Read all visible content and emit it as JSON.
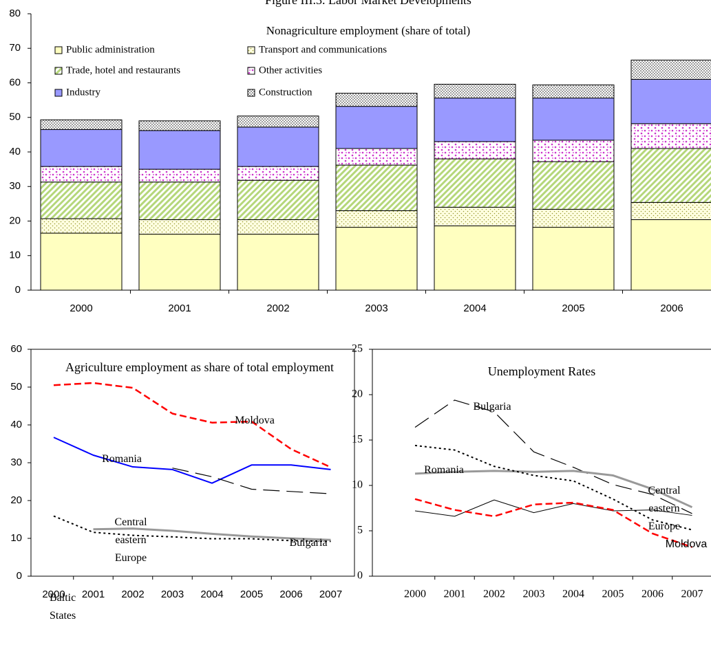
{
  "chart_data": [
    {
      "type": "bar",
      "title": "Figure III.3. Labor Market Developments",
      "subtitle": "Nonagriculture employment (share of total)",
      "categories": [
        "2000",
        "2001",
        "2002",
        "2003",
        "2004",
        "2005",
        "2006"
      ],
      "ylim": [
        0,
        80
      ],
      "yticks": [
        0,
        10,
        20,
        30,
        40,
        50,
        60,
        70,
        80
      ],
      "stacked": true,
      "series": [
        {
          "name": "Public administration",
          "color": "#ffffc0",
          "values": [
            16.5,
            16.2,
            16.2,
            18.2,
            18.6,
            18.2,
            20.4
          ]
        },
        {
          "name": "Transport and communications",
          "color": "#ffffe0",
          "pattern": "dots-olive",
          "values": [
            4.2,
            4.2,
            4.2,
            4.8,
            5.4,
            5.2,
            5.0
          ]
        },
        {
          "name": "Trade, hotel and restaurants",
          "color": "#b5d77a",
          "pattern": "hatch-green",
          "values": [
            10.6,
            10.9,
            11.4,
            13.2,
            14.0,
            13.8,
            15.6
          ]
        },
        {
          "name": "Other activities",
          "color": "#cc33cc",
          "pattern": "dots-magenta",
          "values": [
            4.5,
            3.7,
            4.0,
            4.8,
            5.0,
            6.2,
            7.2
          ]
        },
        {
          "name": "Industry",
          "color": "#9999ff",
          "values": [
            10.7,
            11.2,
            11.4,
            12.2,
            12.6,
            12.2,
            12.8
          ]
        },
        {
          "name": "Construction",
          "color": "#808080",
          "pattern": "dots-dense",
          "values": [
            2.8,
            2.8,
            3.2,
            3.8,
            4.0,
            3.8,
            5.6
          ]
        }
      ]
    },
    {
      "type": "line",
      "title": "Agriculture employment as share of total employment",
      "categories": [
        "2000",
        "2001",
        "2002",
        "2003",
        "2004",
        "2005",
        "2006",
        "2007"
      ],
      "ylim": [
        0,
        60
      ],
      "yticks": [
        0,
        10,
        20,
        30,
        40,
        50,
        60
      ],
      "series": [
        {
          "name": "Moldova",
          "color": "#ff0000",
          "line_style": "dashed",
          "linewidth": 2.5,
          "values": [
            50.5,
            51.1,
            49.8,
            43.0,
            40.6,
            40.9,
            33.6,
            28.8
          ]
        },
        {
          "name": "Romania",
          "color": "#0000ff",
          "line_style": "solid",
          "linewidth": 2,
          "values": [
            36.7,
            32.0,
            28.9,
            28.2,
            24.6,
            29.4,
            29.4,
            28.2
          ]
        },
        {
          "name": "Bulgaria",
          "color": "#000000",
          "line_style": "long-dashed",
          "linewidth": 1.2,
          "values": [
            null,
            null,
            null,
            28.6,
            26.3,
            23.0,
            22.4,
            21.8
          ]
        },
        {
          "name": "Central eastern Europe",
          "color": "#999999",
          "line_style": "solid",
          "linewidth": 3,
          "values": [
            null,
            12.4,
            12.6,
            12.0,
            11.2,
            10.5,
            10.0,
            9.6
          ]
        },
        {
          "name": "Baltic States",
          "color": "#000000",
          "line_style": "dotted",
          "linewidth": 2,
          "values": [
            15.9,
            11.6,
            10.8,
            10.4,
            9.9,
            9.9,
            9.4,
            9.2
          ]
        }
      ]
    },
    {
      "type": "line",
      "title": "Unemployment Rates",
      "categories": [
        "2000",
        "2001",
        "2002",
        "2003",
        "2004",
        "2005",
        "2006",
        "2007"
      ],
      "ylim": [
        0,
        25
      ],
      "yticks": [
        0,
        5,
        10,
        15,
        20,
        25
      ],
      "series": [
        {
          "name": "Bulgaria",
          "color": "#000000",
          "line_style": "long-dashed",
          "linewidth": 1.2,
          "values": [
            16.4,
            19.4,
            18.1,
            13.7,
            12.0,
            10.1,
            9.0,
            6.9
          ]
        },
        {
          "name": "Central eastern Europe",
          "color": "#999999",
          "line_style": "solid",
          "linewidth": 3,
          "values": [
            11.3,
            11.5,
            11.6,
            11.5,
            11.6,
            11.1,
            9.6,
            7.6
          ]
        },
        {
          "color": "#000000",
          "line_style": "dotted",
          "linewidth": 2,
          "values": [
            14.4,
            13.9,
            12.1,
            11.1,
            10.5,
            8.5,
            6.2,
            5.1
          ]
        },
        {
          "name": "Romania",
          "color": "#000000",
          "line_style": "solid",
          "linewidth": 1,
          "values": [
            7.2,
            6.6,
            8.4,
            7.0,
            8.0,
            7.2,
            7.3,
            6.7
          ]
        },
        {
          "name": "Moldova",
          "color": "#ff0000",
          "line_style": "dashed",
          "linewidth": 2.5,
          "values": [
            8.5,
            7.3,
            6.6,
            7.9,
            8.1,
            7.3,
            4.7,
            3.2
          ]
        }
      ]
    }
  ]
}
